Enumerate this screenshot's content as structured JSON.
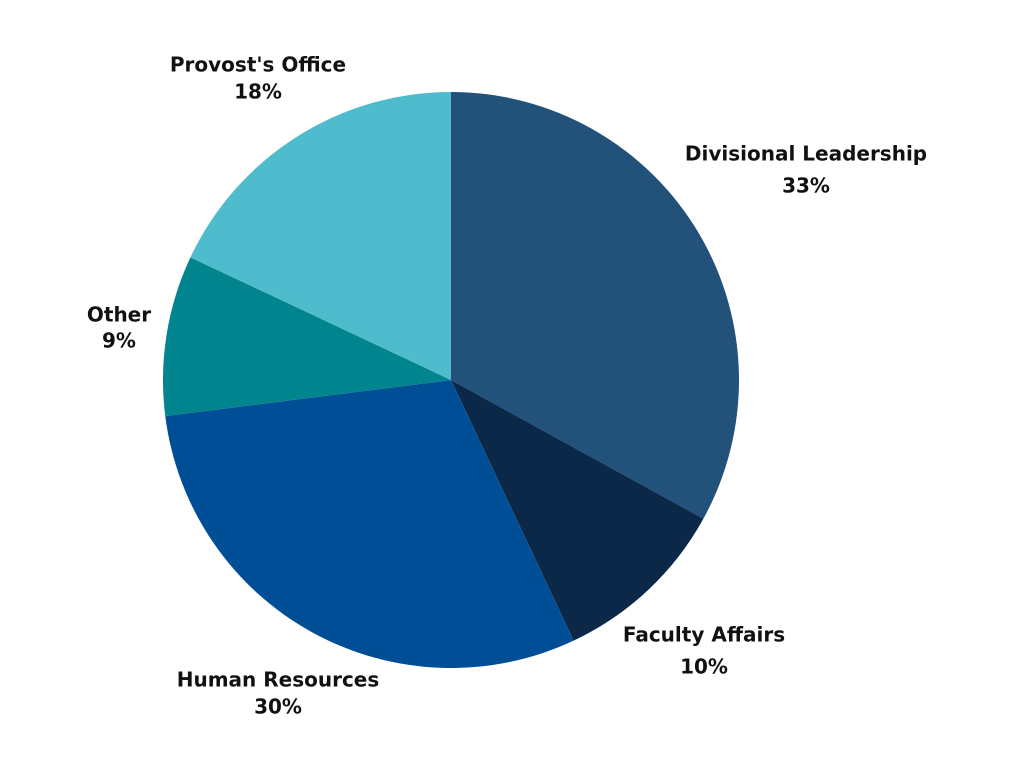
{
  "chart_data": {
    "type": "pie",
    "categories": [
      "Divisional Leadership",
      "Faculty Affairs",
      "Human Resources",
      "Other",
      "Provost's Office"
    ],
    "values": [
      33,
      10,
      30,
      9,
      18
    ],
    "value_labels": [
      "33%",
      "10%",
      "30%",
      "9%",
      "18%"
    ],
    "colors": [
      "#22527a",
      "#0b2848",
      "#004f96",
      "#00858f",
      "#4fbccd"
    ]
  }
}
